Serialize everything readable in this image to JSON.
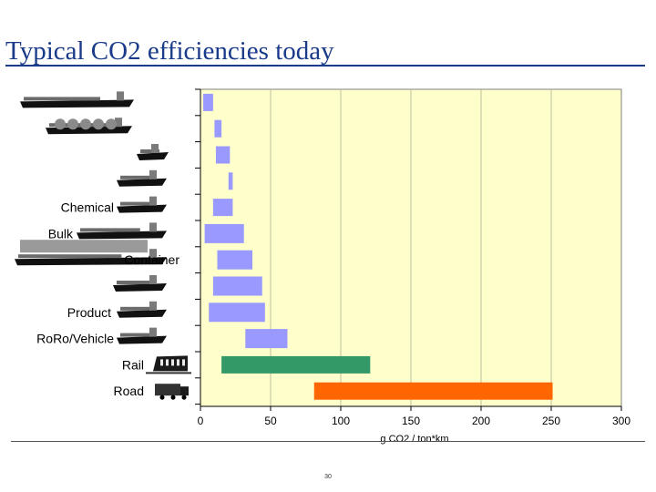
{
  "slide": {
    "title": "Typical CO2 efficiencies today",
    "page_number": "30"
  },
  "chart_data": {
    "type": "bar",
    "orientation": "horizontal-floating",
    "xlabel": "g CO2 / ton*km",
    "xlim": [
      0,
      300
    ],
    "xticks": [
      0,
      50,
      100,
      150,
      200,
      250,
      300
    ],
    "grid": true,
    "legend": "none",
    "colors": {
      "plot_bg": "#ffffcc",
      "ship": "#9999ff",
      "rail": "#339966",
      "road": "#ff6600",
      "grid": "#bfbfa0"
    },
    "categories": [
      {
        "label": "",
        "icon": "crude-tanker-icon",
        "low": 2,
        "high": 9,
        "color": "ship"
      },
      {
        "label": "",
        "icon": "lng-carrier-icon",
        "low": 10,
        "high": 15,
        "color": "ship"
      },
      {
        "label": "",
        "icon": "small-tanker-icon",
        "low": 11,
        "high": 21,
        "color": "ship"
      },
      {
        "label": "",
        "icon": "small-bulker-icon",
        "low": 20,
        "high": 23,
        "color": "ship"
      },
      {
        "label": "Chemical",
        "icon": "chemical-tanker-icon",
        "low": 9,
        "high": 23,
        "color": "ship"
      },
      {
        "label": "Bulk",
        "icon": "bulk-carrier-icon",
        "low": 3,
        "high": 31,
        "color": "ship"
      },
      {
        "label": "Container",
        "icon": "container-ship-icon",
        "low": 12,
        "high": 37,
        "color": "ship"
      },
      {
        "label": "",
        "icon": "general-cargo-icon",
        "low": 9,
        "high": 44,
        "color": "ship"
      },
      {
        "label": "Product",
        "icon": "product-tanker-icon",
        "low": 6,
        "high": 46,
        "color": "ship"
      },
      {
        "label": "RoRo/Vehicle",
        "icon": "roro-ship-icon",
        "low": 32,
        "high": 62,
        "color": "ship"
      },
      {
        "label": "Rail",
        "icon": "train-icon",
        "low": 15,
        "high": 121,
        "color": "rail"
      },
      {
        "label": "Road",
        "icon": "truck-icon",
        "low": 81,
        "high": 251,
        "color": "road"
      }
    ]
  }
}
